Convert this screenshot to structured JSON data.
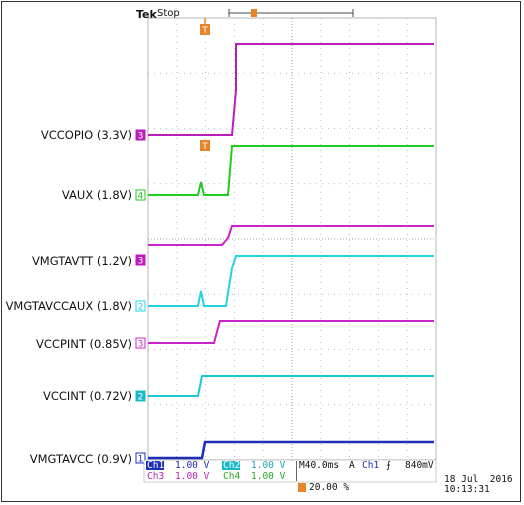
{
  "header": {
    "brand": "Tek",
    "mode": "Stop"
  },
  "colors": {
    "ch1": "#1b2fb8",
    "ch2": "#22d3e3",
    "ch3": "#cc22cc",
    "ch4": "#22cc22",
    "trigger": "#e8842a",
    "grid": "#a0a0a0",
    "frame": "#333333"
  },
  "traces": [
    {
      "name": "VCCOPIO (3.3V)",
      "channel": "3",
      "color": "#bb1dbb",
      "filled": true
    },
    {
      "name": "VAUX (1.8V)",
      "channel": "4",
      "color": "#20cc20",
      "filled": false
    },
    {
      "name": "",
      "channel": "",
      "color": "#cc22cc",
      "filled": false
    },
    {
      "name": "VMGTAVTT (1.2V)",
      "channel": "3",
      "color": "#bb1dbb",
      "filled": true
    },
    {
      "name": "VMGTAVCCAUX (1.8V)",
      "channel": "2",
      "color": "#22d3e3",
      "filled": false
    },
    {
      "name": "VCCPINT (0.85V)",
      "channel": "3",
      "color": "#cc22cc",
      "filled": false
    },
    {
      "name": "VCCINT (0.72V)",
      "channel": "2",
      "color": "#18b8c8",
      "filled": true
    },
    {
      "name": "VMGTAVCC (0.9V)",
      "channel": "1",
      "color": "#1b2fb8",
      "filled": false
    }
  ],
  "readout": {
    "ch1_label": "Ch1",
    "ch1_scale": "1.00 V",
    "ch2_label": "Ch2",
    "ch2_scale": "1.00 V",
    "ch3_label": "Ch3",
    "ch3_scale": "1.00 V",
    "ch4_label": "Ch4",
    "ch4_scale": "1.00 V",
    "timebase": "M40.0ms",
    "trigger_mode": "A",
    "trigger_source": "Ch1",
    "trigger_slope_icon": "rising-edge-icon",
    "trigger_level": "840mV",
    "trigger_position": "20.00 %",
    "date": "18 Jul  2016",
    "time": "10:13:31"
  }
}
